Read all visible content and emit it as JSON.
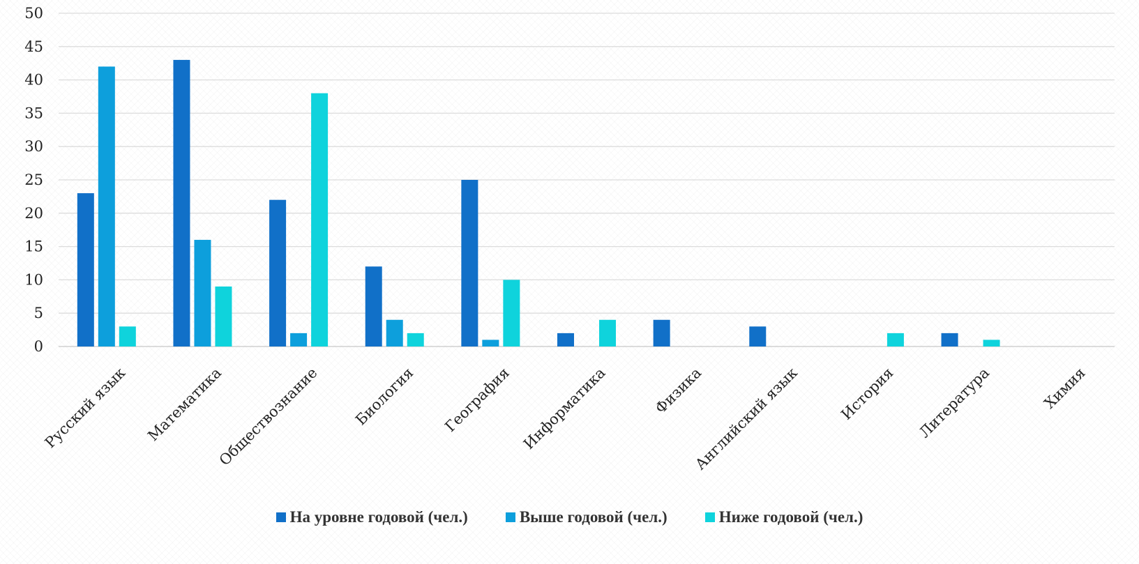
{
  "chart_data": {
    "type": "bar",
    "categories": [
      "Русский язык",
      "Математика",
      "Обществознание",
      "Биология",
      "География",
      "Информатика",
      "Физика",
      "Английский язык",
      "История",
      "Литература",
      "Химия"
    ],
    "series": [
      {
        "name": "На уровне годовой (чел.)",
        "color": "#1170c8",
        "values": [
          23,
          43,
          22,
          12,
          25,
          2,
          4,
          3,
          0,
          2,
          0
        ]
      },
      {
        "name": "Выше годовой (чел.)",
        "color": "#0d9fdc",
        "values": [
          42,
          16,
          2,
          4,
          1,
          0,
          0,
          0,
          0,
          0,
          0
        ]
      },
      {
        "name": "Ниже годовой (чел.)",
        "color": "#0fd3dc",
        "values": [
          3,
          9,
          38,
          2,
          10,
          4,
          0,
          0,
          2,
          1,
          0
        ]
      }
    ],
    "ylim": [
      0,
      50
    ],
    "yticks": [
      0,
      5,
      10,
      15,
      20,
      25,
      30,
      35,
      40,
      45,
      50
    ],
    "grid": true,
    "legend_position": "bottom",
    "title": "",
    "xlabel": "",
    "ylabel": ""
  }
}
